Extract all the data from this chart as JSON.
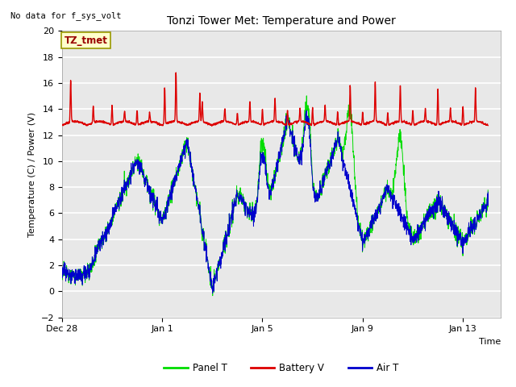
{
  "title": "Tonzi Tower Met: Temperature and Power",
  "subtitle": "No data for f_sys_volt",
  "ylabel": "Temperature (C) / Power (V)",
  "xlabel": "Time",
  "annotation": "TZ_tmet",
  "ylim": [
    -2,
    20
  ],
  "yticks": [
    -2,
    0,
    2,
    4,
    6,
    8,
    10,
    12,
    14,
    16,
    18,
    20
  ],
  "xtick_labels": [
    "Dec 28",
    "Jan 1",
    "Jan 5",
    "Jan 9",
    "Jan 13"
  ],
  "xtick_positions": [
    0,
    4,
    8,
    12,
    16
  ],
  "xlim": [
    0,
    17.5
  ],
  "fig_bg": "#ffffff",
  "plot_bg": "#e8e8e8",
  "grid_color": "#ffffff",
  "panel_t_color": "#00dd00",
  "battery_v_color": "#dd0000",
  "air_t_color": "#0000cc",
  "legend_labels": [
    "Panel T",
    "Battery V",
    "Air T"
  ],
  "legend_colors": [
    "#00dd00",
    "#dd0000",
    "#0000cc"
  ],
  "n_points": 2000
}
